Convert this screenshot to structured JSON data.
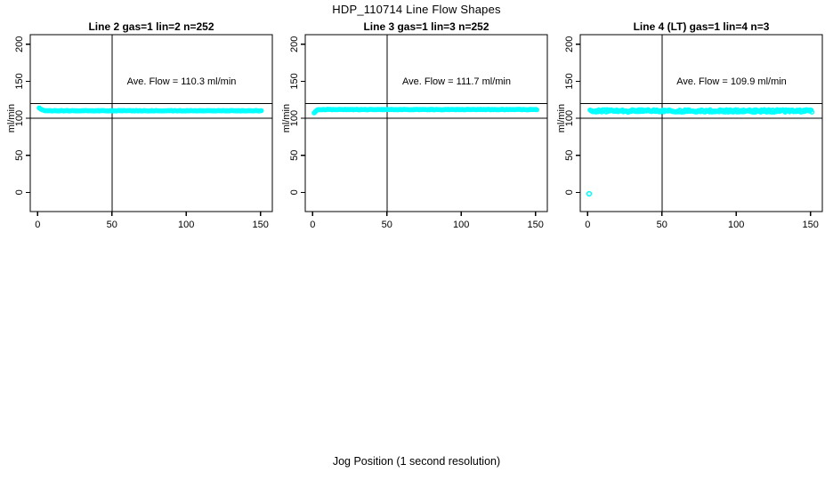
{
  "window": {
    "background_color": "#ffffff",
    "foreground_color": "#000000"
  },
  "chart_data": {
    "type": "scatter",
    "layout": "three-panel-small-multiples",
    "main_title": "HDP_110714  Line Flow Shapes",
    "xlabel": "Jog Position (1 second resolution)",
    "ylabel": "ml/min",
    "x_ticks": [
      0,
      50,
      100,
      150
    ],
    "y_ticks": [
      0,
      50,
      100,
      150,
      200
    ],
    "xlim": [
      -5,
      158
    ],
    "ylim": [
      -26,
      213
    ],
    "grid": false,
    "point_color": "#00ffff",
    "point_style": "open-circle",
    "ref_lines": {
      "horizontal": [
        100,
        120
      ],
      "vertical": [
        50
      ]
    },
    "panels": [
      {
        "title": "Line 2 gas=1 lin=2 n=252",
        "n": 252,
        "ave_flow": 110.3,
        "ave_flow_label": "Ave. Flow =  110.3  ml/min",
        "series": {
          "startup_points": [
            [
              1,
              114
            ],
            [
              1.6,
              113.2
            ],
            [
              2.2,
              112.4
            ],
            [
              2.8,
              111.7
            ],
            [
              3.4,
              111.2
            ],
            [
              4.2,
              110.7
            ]
          ],
          "band": {
            "x_start": 5,
            "x_end": 151,
            "x_step": 0.65,
            "y_mean": 110.2,
            "y_jitter": 0.35
          }
        },
        "outliers": []
      },
      {
        "title": "Line 3 gas=1 lin=3 n=252",
        "n": 252,
        "ave_flow": 111.7,
        "ave_flow_label": "Ave. Flow =  111.7  ml/min",
        "series": {
          "startup_points": [
            [
              1,
              107.3
            ],
            [
              1.6,
              108.4
            ],
            [
              2.2,
              109.7
            ],
            [
              2.8,
              110.9
            ],
            [
              3.4,
              111.5
            ]
          ],
          "band": {
            "x_start": 4,
            "x_end": 151,
            "x_step": 0.65,
            "y_mean": 111.8,
            "y_jitter": 0.35
          }
        },
        "outliers": []
      },
      {
        "title": "Line 4 (LT) gas=1 lin=4 n=3",
        "n": 3,
        "ave_flow": 109.9,
        "ave_flow_label": "Ave. Flow =  109.9  ml/min",
        "series": {
          "startup_points": [
            [
              1.6,
              111.2
            ],
            [
              2.2,
              110.6
            ]
          ],
          "band": {
            "x_start": 2.5,
            "x_end": 151,
            "x_step": 0.5,
            "y_mean": 110,
            "y_jitter": 1.7
          }
        },
        "outliers": [
          [
            1,
            -2
          ]
        ]
      }
    ]
  }
}
